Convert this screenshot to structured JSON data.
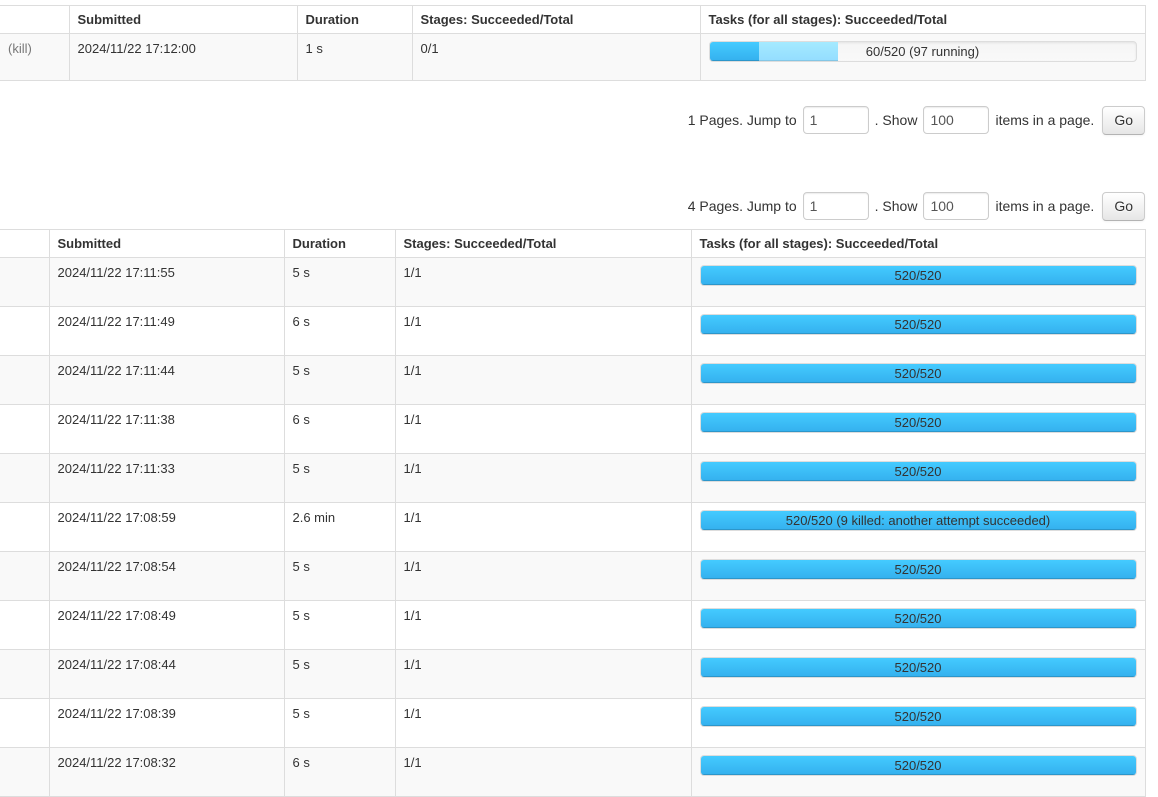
{
  "colors": {
    "bar_completed_top": "#44CBFF",
    "bar_completed_bottom": "#34B0EE",
    "bar_running_top": "#A4EAFF",
    "bar_running_bottom": "#94DDFF",
    "row_stripe": "#F9F9F9",
    "table_border": "#DDDDDD"
  },
  "active_jobs_table": {
    "headers": {
      "id": "",
      "submitted": "Submitted",
      "duration": "Duration",
      "stages": "Stages: Succeeded/Total",
      "tasks": "Tasks (for all stages): Succeeded/Total"
    },
    "row": {
      "kill_link": "(kill)",
      "submitted": "2024/11/22 17:12:00",
      "duration": "1 s",
      "stages": "0/1",
      "tasks_label": "60/520 (97 running)",
      "tasks_succeeded": 60,
      "tasks_running": 97,
      "tasks_total": 520
    }
  },
  "active_pagination": {
    "pages_text": "1 Pages. Jump to",
    "jump_value": "1",
    "show_text": ". Show",
    "show_value": "100",
    "items_text": "items in a page.",
    "go_label": "Go"
  },
  "completed_pagination": {
    "pages_text": "4 Pages. Jump to",
    "jump_value": "1",
    "show_text": ". Show",
    "show_value": "100",
    "items_text": "items in a page.",
    "go_label": "Go"
  },
  "completed_jobs_table": {
    "headers": {
      "id": "",
      "submitted": "Submitted",
      "duration": "Duration",
      "stages": "Stages: Succeeded/Total",
      "tasks": "Tasks (for all stages): Succeeded/Total"
    },
    "rows": [
      {
        "submitted": "2024/11/22 17:11:55",
        "duration": "5 s",
        "stages": "1/1",
        "tasks_label": "520/520"
      },
      {
        "submitted": "2024/11/22 17:11:49",
        "duration": "6 s",
        "stages": "1/1",
        "tasks_label": "520/520"
      },
      {
        "submitted": "2024/11/22 17:11:44",
        "duration": "5 s",
        "stages": "1/1",
        "tasks_label": "520/520"
      },
      {
        "submitted": "2024/11/22 17:11:38",
        "duration": "6 s",
        "stages": "1/1",
        "tasks_label": "520/520"
      },
      {
        "submitted": "2024/11/22 17:11:33",
        "duration": "5 s",
        "stages": "1/1",
        "tasks_label": "520/520"
      },
      {
        "submitted": "2024/11/22 17:08:59",
        "duration": "2.6 min",
        "stages": "1/1",
        "tasks_label": "520/520 (9 killed: another attempt succeeded)"
      },
      {
        "submitted": "2024/11/22 17:08:54",
        "duration": "5 s",
        "stages": "1/1",
        "tasks_label": "520/520"
      },
      {
        "submitted": "2024/11/22 17:08:49",
        "duration": "5 s",
        "stages": "1/1",
        "tasks_label": "520/520"
      },
      {
        "submitted": "2024/11/22 17:08:44",
        "duration": "5 s",
        "stages": "1/1",
        "tasks_label": "520/520"
      },
      {
        "submitted": "2024/11/22 17:08:39",
        "duration": "5 s",
        "stages": "1/1",
        "tasks_label": "520/520"
      },
      {
        "submitted": "2024/11/22 17:08:32",
        "duration": "6 s",
        "stages": "1/1",
        "tasks_label": "520/520"
      }
    ]
  }
}
